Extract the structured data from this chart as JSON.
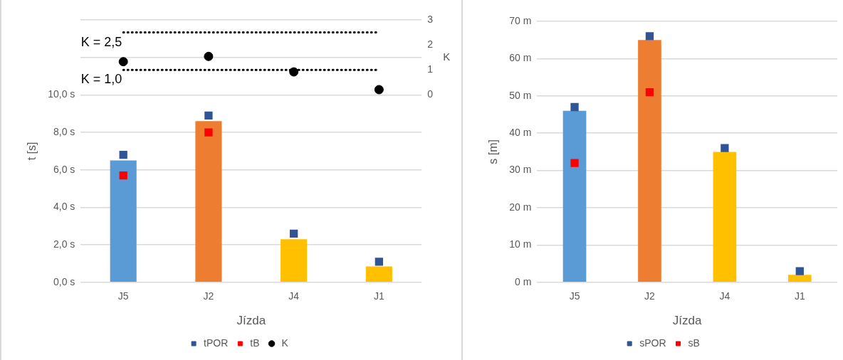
{
  "chart_data": [
    {
      "type": "bar",
      "xlabel": "Jízda",
      "ylabel": "t [s]",
      "y2label": "K",
      "categories": [
        "J5",
        "J2",
        "J4",
        "J1"
      ],
      "series": [
        {
          "colors": [
            "#5b9bd5",
            "#ed7d31",
            "#ffc000",
            "#ffc000"
          ],
          "values": [
            6.5,
            8.6,
            2.3,
            0.85
          ]
        },
        {
          "type": "scatter",
          "name": "tPOR",
          "color": "#2f5597",
          "marker": "square",
          "values": [
            6.8,
            8.9,
            2.6,
            1.1
          ]
        },
        {
          "type": "scatter",
          "name": "tB",
          "color": "#ff0000",
          "marker": "square",
          "values": [
            5.7,
            8.0,
            null,
            null
          ]
        },
        {
          "type": "scatter",
          "name": "K",
          "color": "#000000",
          "marker": "circle",
          "axis": "y2",
          "values": [
            1.33,
            1.54,
            0.92,
            0.21
          ]
        }
      ],
      "ylim": [
        0,
        14
      ],
      "yticks": [
        {
          "value": 0,
          "label": "0,0 s"
        },
        {
          "value": 2,
          "label": "2,0 s"
        },
        {
          "value": 4,
          "label": "4,0 s"
        },
        {
          "value": 6,
          "label": "6,0 s"
        },
        {
          "value": 8,
          "label": "8,0 s"
        },
        {
          "value": 10,
          "label": "10,0 s"
        },
        {
          "value": 12,
          "label": null
        },
        {
          "value": 14,
          "label": null
        }
      ],
      "y2lim": [
        -7.5,
        3
      ],
      "y2ticks": [
        0,
        1,
        2,
        3
      ],
      "ref_lines": [
        {
          "axis": "y2",
          "value": 2.5,
          "label": "K = 2,5",
          "color": "#000000",
          "line_style": "dotted"
        },
        {
          "axis": "y2",
          "value": 1.0,
          "label": "K = 1,0",
          "color": "#000000",
          "line_style": "dotted"
        }
      ],
      "grid": "y",
      "legend": "bottom"
    },
    {
      "type": "bar",
      "xlabel": "Jízda",
      "ylabel": "s [m]",
      "categories": [
        "J5",
        "J2",
        "J4",
        "J1"
      ],
      "series": [
        {
          "colors": [
            "#5b9bd5",
            "#ed7d31",
            "#ffc000",
            "#ffc000"
          ],
          "values": [
            46,
            65,
            35,
            2
          ]
        },
        {
          "type": "scatter",
          "name": "sPOR",
          "color": "#2f5597",
          "marker": "square",
          "values": [
            47,
            66,
            36,
            3
          ]
        },
        {
          "type": "scatter",
          "name": "sB",
          "color": "#ff0000",
          "marker": "square",
          "values": [
            32,
            51,
            null,
            null
          ]
        }
      ],
      "ylim": [
        0,
        70
      ],
      "yticks": [
        {
          "value": 0,
          "label": "0 m"
        },
        {
          "value": 10,
          "label": "10 m"
        },
        {
          "value": 20,
          "label": "20 m"
        },
        {
          "value": 30,
          "label": "30 m"
        },
        {
          "value": 40,
          "label": "40 m"
        },
        {
          "value": 50,
          "label": "50 m"
        },
        {
          "value": 60,
          "label": "60 m"
        },
        {
          "value": 70,
          "label": "70 m"
        }
      ],
      "grid": "y",
      "legend": "bottom"
    }
  ]
}
